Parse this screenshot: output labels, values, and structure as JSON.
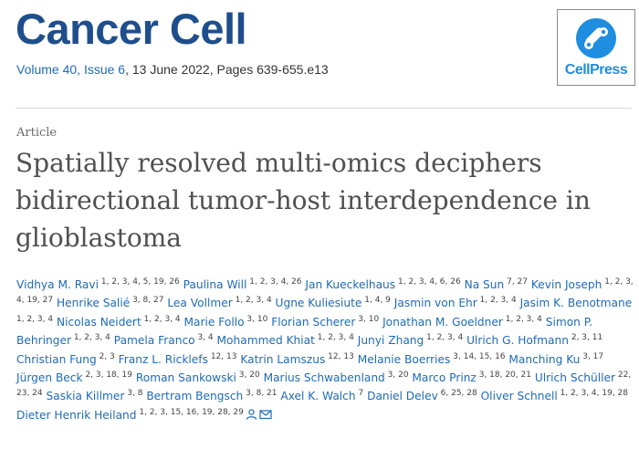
{
  "journal": {
    "title": "Cancer Cell",
    "issue_link": "Volume 40, Issue 6",
    "date_pages": ", 13 June 2022, Pages 639-655.e13"
  },
  "publisher_logo": {
    "text": "CellPress",
    "color": "#1f8de0"
  },
  "article": {
    "type": "Article",
    "title": "Spatially resolved multi-omics deciphers bidirectional tumor-host interdependence in glioblastoma"
  },
  "colors": {
    "journal_blue": "#1f4e8c",
    "link_blue": "#1f6bb5"
  },
  "icons": [
    "person-icon",
    "envelope-icon"
  ],
  "authors": [
    {
      "name": "Vidhya M. Ravi",
      "aff": "1, 2, 3, 4, 5, 19, 26"
    },
    {
      "name": "Paulina Will",
      "aff": "1, 2, 3, 4, 26"
    },
    {
      "name": "Jan Kueckelhaus",
      "aff": "1, 2, 3, 4, 6, 26"
    },
    {
      "name": "Na Sun",
      "aff": "7, 27"
    },
    {
      "name": "Kevin Joseph",
      "aff": "1, 2, 3, 4, 19, 27"
    },
    {
      "name": "Henrike Salié",
      "aff": "3, 8, 27"
    },
    {
      "name": "Lea Vollmer",
      "aff": "1, 2, 3, 4"
    },
    {
      "name": "Ugne Kuliesiute",
      "aff": "1, 4, 9"
    },
    {
      "name": "Jasmin von Ehr",
      "aff": "1, 2, 3, 4"
    },
    {
      "name": "Jasim K. Benotmane",
      "aff": "1, 2, 3, 4"
    },
    {
      "name": "Nicolas Neidert",
      "aff": "1, 2, 3, 4"
    },
    {
      "name": "Marie Follo",
      "aff": "3, 10"
    },
    {
      "name": "Florian Scherer",
      "aff": "3, 10"
    },
    {
      "name": "Jonathan M. Goeldner",
      "aff": "1, 2, 3, 4"
    },
    {
      "name": "Simon P. Behringer",
      "aff": "1, 2, 3, 4"
    },
    {
      "name": "Pamela Franco",
      "aff": "3, 4"
    },
    {
      "name": "Mohammed Khiat",
      "aff": "1, 2, 3, 4"
    },
    {
      "name": "Junyi Zhang",
      "aff": "1, 2, 3, 4"
    },
    {
      "name": "Ulrich G. Hofmann",
      "aff": "2, 3, 11"
    },
    {
      "name": "Christian Fung",
      "aff": "2, 3"
    },
    {
      "name": "Franz L. Ricklefs",
      "aff": "12, 13"
    },
    {
      "name": "Katrin Lamszus",
      "aff": "12, 13"
    },
    {
      "name": "Melanie Boerries",
      "aff": "3, 14, 15, 16"
    },
    {
      "name": "Manching Ku",
      "aff": "3, 17"
    },
    {
      "name": "Jürgen Beck",
      "aff": "2, 3, 18, 19"
    },
    {
      "name": "Roman Sankowski",
      "aff": "3, 20"
    },
    {
      "name": "Marius Schwabenland",
      "aff": "3, 20"
    },
    {
      "name": "Marco Prinz",
      "aff": "3, 18, 20, 21"
    },
    {
      "name": "Ulrich Schüller",
      "aff": "22, 23, 24"
    },
    {
      "name": "Saskia Killmer",
      "aff": "3, 8"
    },
    {
      "name": "Bertram Bengsch",
      "aff": "3, 8, 21"
    },
    {
      "name": "Axel K. Walch",
      "aff": "7"
    },
    {
      "name": "Daniel Delev",
      "aff": "6, 25, 28"
    },
    {
      "name": "Oliver Schnell",
      "aff": "1, 2, 3, 4, 19, 28"
    },
    {
      "name": "Dieter Henrik Heiland",
      "aff": "1, 2, 3, 15, 16, 19, 28, 29"
    }
  ]
}
